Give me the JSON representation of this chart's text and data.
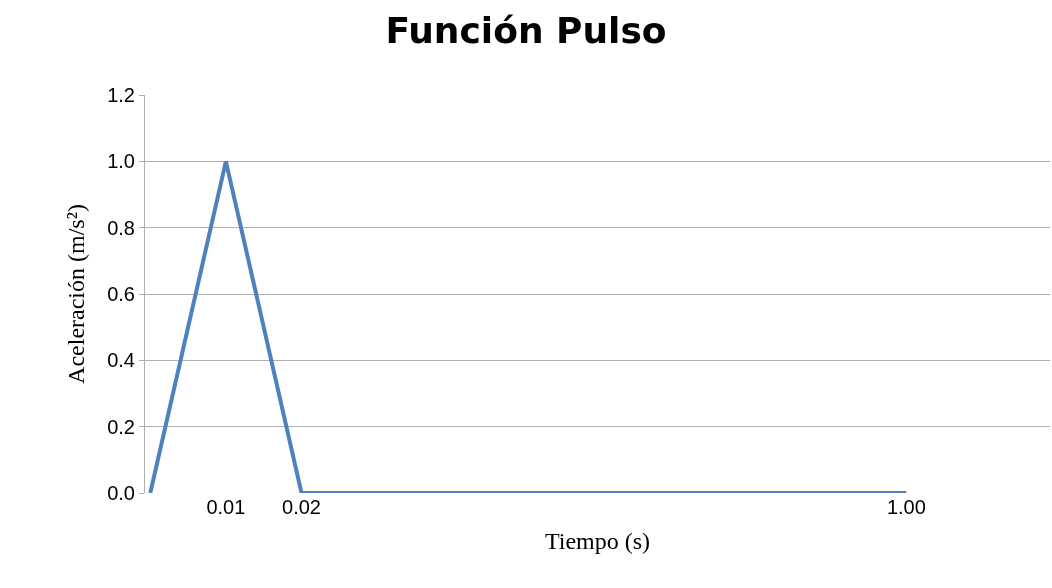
{
  "chart_data": {
    "type": "line",
    "title": "Función Pulso",
    "xlabel": "Tiempo (s)",
    "ylabel": "Aceleración (m/s²)",
    "categories": [
      null,
      "0.01",
      "0.02",
      null,
      null,
      null,
      null,
      null,
      null,
      null,
      "1.00"
    ],
    "series": [
      {
        "color": "#4f81bd",
        "values": [
          0,
          1,
          0,
          0,
          0,
          0,
          0,
          0,
          0,
          0,
          0
        ]
      }
    ],
    "ylim": [
      0,
      1.2
    ],
    "yticks": [
      {
        "value": 0,
        "label": "0.0"
      },
      {
        "value": 0.2,
        "label": "0.2"
      },
      {
        "value": 0.4,
        "label": "0.4"
      },
      {
        "value": 0.6,
        "label": "0.6"
      },
      {
        "value": 0.8,
        "label": "0.8"
      },
      {
        "value": 1,
        "label": "1.0"
      },
      {
        "value": 1.2,
        "label": "1.2"
      }
    ],
    "grid": "y",
    "marker": "none",
    "line_style": "solid"
  }
}
